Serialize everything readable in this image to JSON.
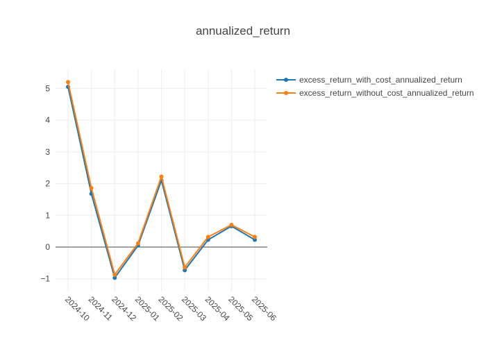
{
  "chart_data": {
    "type": "line",
    "title": "annualized_return",
    "x": [
      "2024-10",
      "2024-11",
      "2024-12",
      "2025-01",
      "2025-02",
      "2025-03",
      "2025-04",
      "2025-05",
      "2025-06"
    ],
    "yticks": [
      -1,
      0,
      1,
      2,
      3,
      4,
      5
    ],
    "ylim": [
      -1.4,
      5.6
    ],
    "grid": true,
    "legend_position": "top-right",
    "series": [
      {
        "name": "excess_return_with_cost_annualized_return",
        "color": "#1f77b4",
        "values": [
          5.05,
          1.68,
          -0.97,
          0.05,
          2.1,
          -0.73,
          0.23,
          0.66,
          0.23
        ]
      },
      {
        "name": "excess_return_without_cost_annualized_return",
        "color": "#ff7f0e",
        "values": [
          5.2,
          1.86,
          -0.87,
          0.12,
          2.22,
          -0.64,
          0.32,
          0.7,
          0.32
        ]
      }
    ]
  }
}
